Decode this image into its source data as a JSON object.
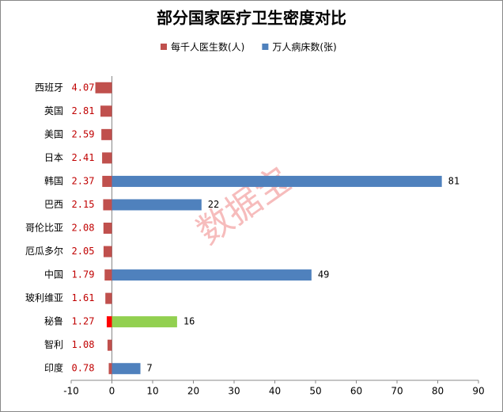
{
  "chart_data": {
    "type": "bar",
    "orientation": "horizontal",
    "title": "部分国家医疗卫生密度对比",
    "watermark": "数据宝",
    "categories": [
      "西班牙",
      "英国",
      "美国",
      "日本",
      "韩国",
      "巴西",
      "哥伦比亚",
      "厄瓜多尔",
      "中国",
      "玻利维亚",
      "秘鲁",
      "智利",
      "印度"
    ],
    "series": [
      {
        "name": "每千人医生数(人)",
        "color": "#c0504d",
        "direction": "left",
        "values": [
          4.07,
          2.81,
          2.59,
          2.41,
          2.37,
          2.15,
          2.08,
          2.05,
          1.79,
          1.61,
          1.27,
          1.08,
          0.78
        ],
        "colors": [
          "#c0504d",
          "#c0504d",
          "#c0504d",
          "#c0504d",
          "#c0504d",
          "#c0504d",
          "#c0504d",
          "#c0504d",
          "#c0504d",
          "#c0504d",
          "#ff0000",
          "#c0504d",
          "#c0504d"
        ],
        "label_color": "#c00000"
      },
      {
        "name": "万人病床数(张)",
        "color": "#4f81bd",
        "direction": "right",
        "values": [
          null,
          null,
          null,
          null,
          81,
          22,
          null,
          null,
          49,
          null,
          16,
          null,
          7
        ],
        "colors": [
          "#4f81bd",
          "#4f81bd",
          "#4f81bd",
          "#4f81bd",
          "#4f81bd",
          "#4f81bd",
          "#4f81bd",
          "#4f81bd",
          "#4f81bd",
          "#4f81bd",
          "#92d050",
          "#4f81bd",
          "#4f81bd"
        ],
        "label_color": "#000000"
      }
    ],
    "xlim": [
      -10,
      90
    ],
    "xticks": [
      -10,
      0,
      10,
      20,
      30,
      40,
      50,
      60,
      70,
      80,
      90
    ],
    "grid": false
  }
}
